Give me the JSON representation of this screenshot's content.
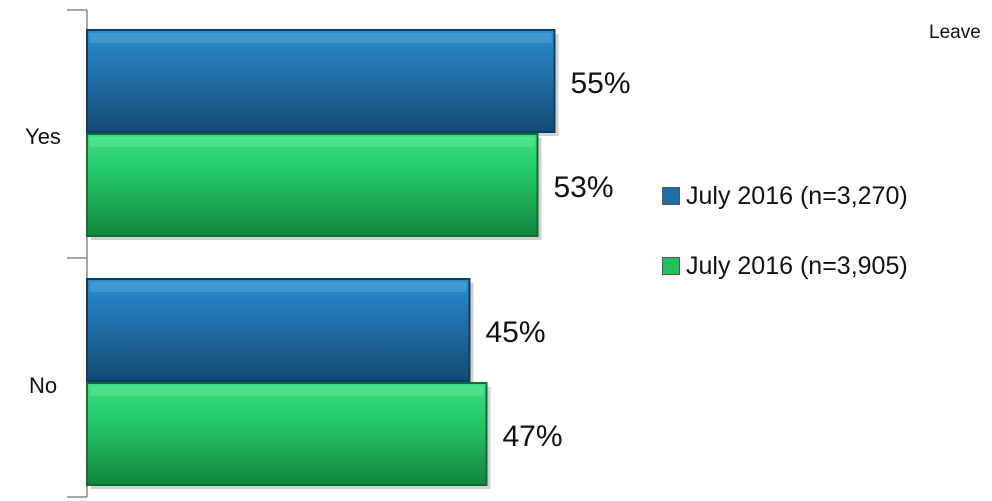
{
  "corner_text": "Leave",
  "colors": {
    "blue": "#1f6fa8",
    "green": "#22c263"
  },
  "chart_data": {
    "type": "bar",
    "orientation": "horizontal",
    "categories": [
      "Yes",
      "No"
    ],
    "series": [
      {
        "name": "July 2016 (n=3,270)",
        "values": [
          55,
          45
        ],
        "labels": [
          "55%",
          "45%"
        ],
        "color": "#1f6fa8"
      },
      {
        "name": "July 2016 (n=3,905)",
        "values": [
          53,
          47
        ],
        "labels": [
          "53%",
          "47%"
        ],
        "color": "#22c263"
      }
    ],
    "title": "",
    "xlabel": "",
    "ylabel": "",
    "xlim": [
      0,
      100
    ],
    "legend": "right",
    "grid": false
  }
}
